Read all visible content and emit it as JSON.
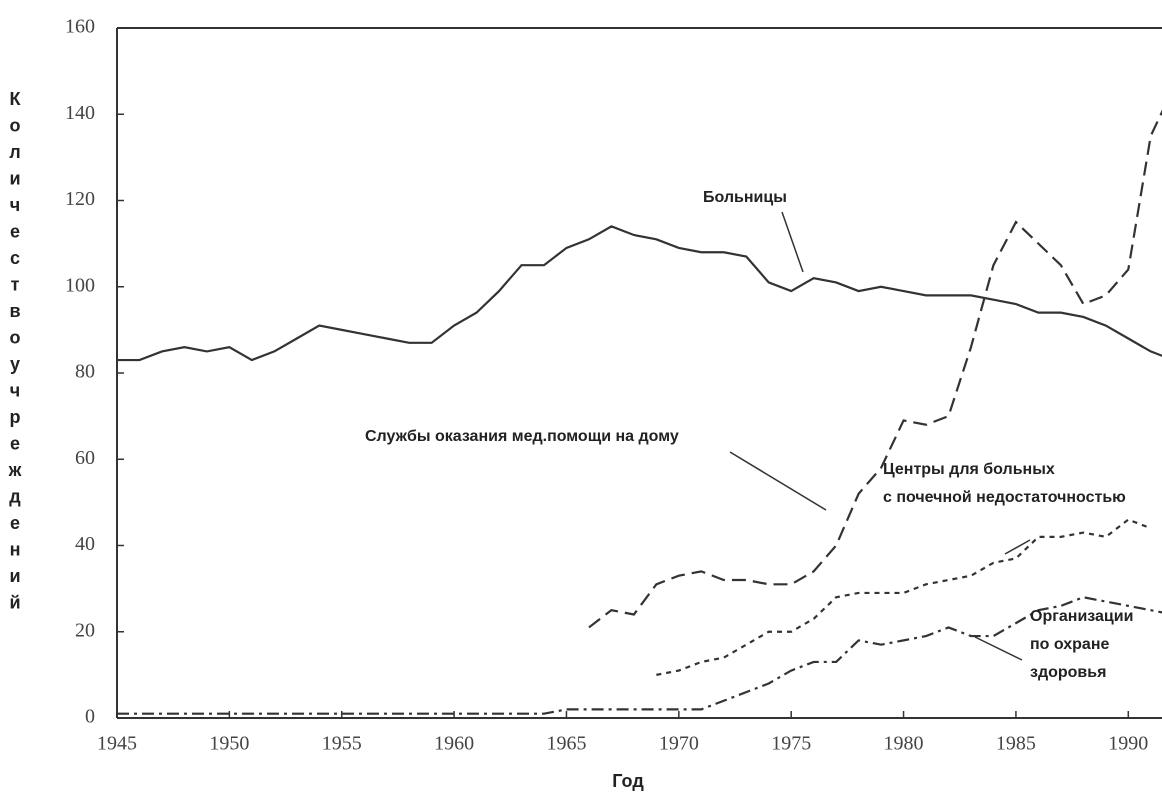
{
  "chart_data": {
    "type": "line",
    "ylabel": "Количество учреждений",
    "xlabel": "Год",
    "x": [
      1945,
      1946,
      1947,
      1948,
      1949,
      1950,
      1951,
      1952,
      1953,
      1954,
      1955,
      1956,
      1957,
      1958,
      1959,
      1960,
      1961,
      1962,
      1963,
      1964,
      1965,
      1966,
      1967,
      1968,
      1969,
      1970,
      1971,
      1972,
      1973,
      1974,
      1975,
      1976,
      1977,
      1978,
      1979,
      1980,
      1981,
      1982,
      1983,
      1984,
      1985,
      1986,
      1987,
      1988,
      1989,
      1990,
      1991,
      1992
    ],
    "series": [
      {
        "color": "#333",
        "dash": "solid",
        "values": [
          83,
          83,
          85,
          86,
          85,
          86,
          83,
          85,
          88,
          91,
          90,
          89,
          88,
          87,
          87,
          91,
          94,
          99,
          105,
          105,
          109,
          111,
          114,
          112,
          111,
          109,
          108,
          108,
          107,
          101,
          99,
          102,
          101,
          99,
          100,
          99,
          98,
          98,
          98,
          97,
          96,
          94,
          94,
          93,
          91,
          88,
          85,
          83
        ]
      },
      {
        "color": "#333",
        "dash": "dashed",
        "values": [
          null,
          null,
          null,
          null,
          null,
          null,
          null,
          null,
          null,
          null,
          null,
          null,
          null,
          null,
          null,
          null,
          null,
          null,
          null,
          null,
          null,
          21,
          25,
          24,
          31,
          33,
          34,
          32,
          32,
          31,
          31,
          34,
          40,
          52,
          58,
          69,
          68,
          70,
          86,
          105,
          115,
          110,
          105,
          96,
          98,
          104,
          135,
          146
        ]
      },
      {
        "color": "#333",
        "dash": "dotted",
        "values": [
          null,
          null,
          null,
          null,
          null,
          null,
          null,
          null,
          null,
          null,
          null,
          null,
          null,
          null,
          null,
          null,
          null,
          null,
          null,
          null,
          null,
          null,
          null,
          null,
          10,
          11,
          13,
          14,
          17,
          20,
          20,
          23,
          28,
          29,
          29,
          29,
          31,
          32,
          33,
          36,
          37,
          42,
          42,
          43,
          42,
          46,
          44,
          null
        ]
      },
      {
        "color": "#333",
        "dash": "dashdot",
        "values": [
          1,
          1,
          1,
          1,
          1,
          1,
          1,
          1,
          1,
          1,
          1,
          1,
          1,
          1,
          1,
          1,
          1,
          1,
          1,
          1,
          2,
          2,
          2,
          2,
          2,
          2,
          2,
          4,
          6,
          8,
          11,
          13,
          13,
          18,
          17,
          18,
          19,
          21,
          19,
          19,
          22,
          25,
          26,
          28,
          27,
          26,
          25,
          24
        ]
      }
    ],
    "annotations": [
      {
        "lines": [
          "Больницы"
        ]
      },
      {
        "lines": [
          "Службы оказания мед.помощи на дому"
        ]
      },
      {
        "lines": [
          "Центры для больных",
          "с почечной недостаточностью"
        ]
      },
      {
        "lines": [
          "Организации",
          "по охране",
          "здоровья"
        ]
      }
    ],
    "xlim": [
      1945,
      1991.5
    ],
    "xticks": [
      1945,
      1950,
      1955,
      1960,
      1965,
      1970,
      1975,
      1980,
      1985,
      1990
    ],
    "ylim": [
      0,
      160
    ],
    "yticks": [
      0,
      20,
      40,
      60,
      80,
      100,
      120,
      140,
      160
    ]
  }
}
